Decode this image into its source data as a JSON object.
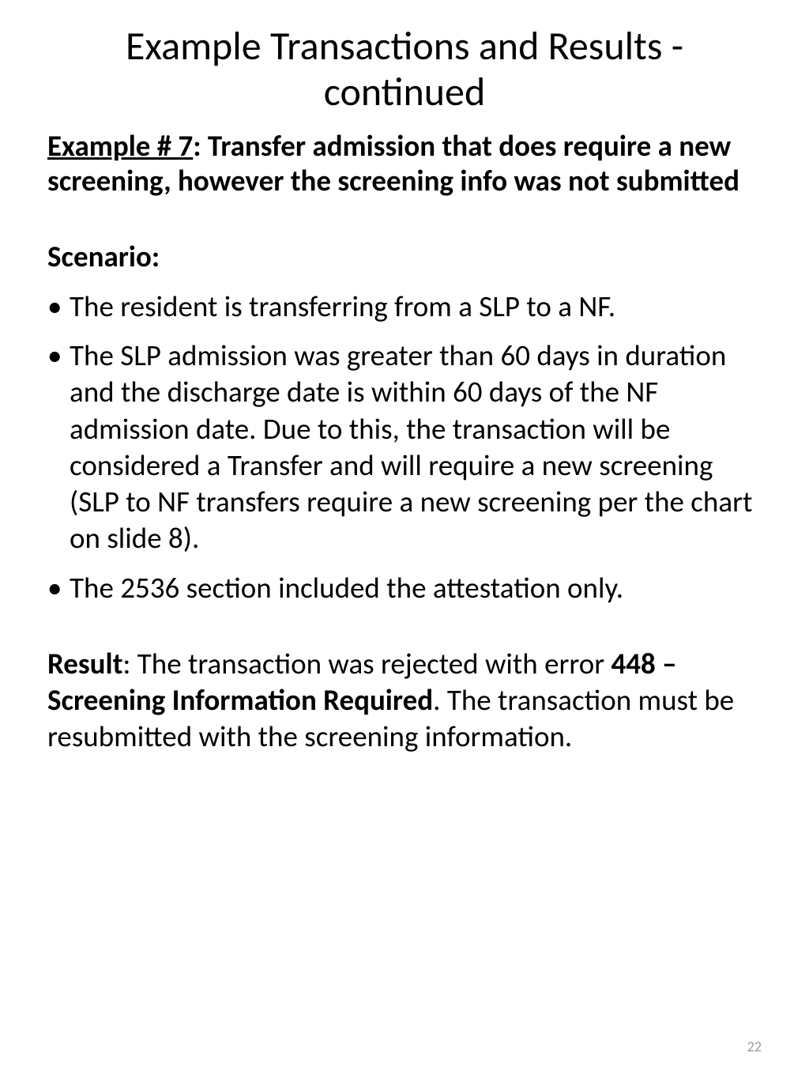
{
  "title": "Example Transactions and Results - continued",
  "subtitle": {
    "underlined": "Example # 7",
    "rest": ":  Transfer admission that does require a new screening, however the screening  info was not submitted"
  },
  "scenario_label": "Scenario",
  "bullets": [
    "The resident is transferring from a SLP to a NF.",
    "The SLP admission was greater than 60 days in duration and the discharge date is within 60 days of the NF admission date.  Due to this, the transaction will be considered a Transfer and will require a new screening (SLP to NF transfers require a new screening per the chart on slide 8).",
    "The 2536 section included the attestation only."
  ],
  "result": {
    "label": "Result",
    "text1": ": The transaction was rejected with error ",
    "bold_text": "448 – Screening Information Required",
    "text2": ".  The transaction must be resubmitted with the screening information."
  },
  "page_number": "22"
}
